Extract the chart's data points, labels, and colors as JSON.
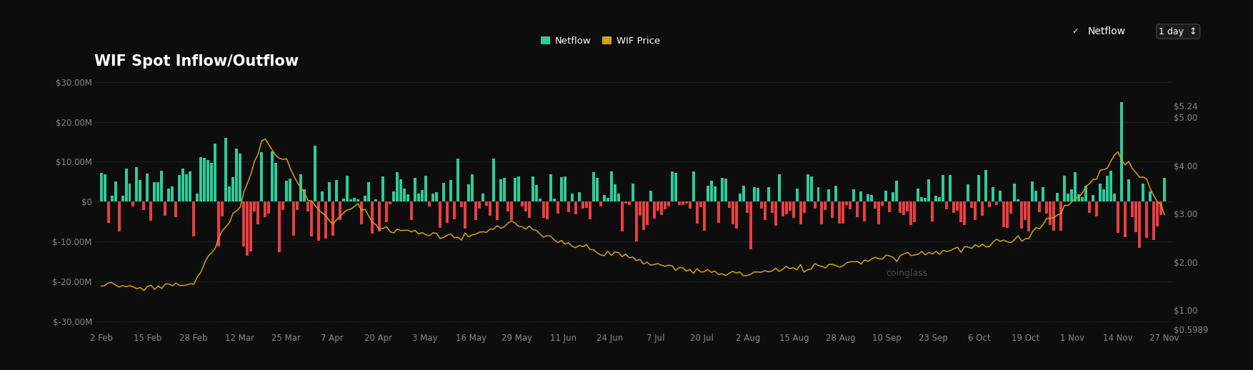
{
  "title": "WIF Spot Inflow/Outflow",
  "bg_color": "#0d0d0d",
  "bar_color_pos": "#2ecc9a",
  "bar_color_neg": "#e84040",
  "price_line_color": "#d4a017",
  "title_color": "#ffffff",
  "axis_label_color": "#888888",
  "grid_color": "#2a2a2a",
  "legend_labels": [
    "Netflow",
    "WIF Price"
  ],
  "legend_colors": [
    "#2ecc9a",
    "#d4a017"
  ],
  "ylim_left": [
    -32000000,
    32000000
  ],
  "ylim_right": [
    0.5989,
    5.9
  ],
  "yticks_left": [
    -30000000,
    -20000000,
    -10000000,
    0,
    10000000,
    20000000,
    30000000
  ],
  "ytick_labels_left": [
    "$-30.00M",
    "$-20.00M",
    "$-10.00M",
    "$0",
    "$10.00M",
    "$20.00M",
    "$30.00M"
  ],
  "ytick_labels_right": [
    "$0.5989",
    "$1.00",
    "$2.00",
    "$3.00",
    "$4.00",
    "$5.00",
    "$5.24"
  ],
  "yticks_right": [
    0.5989,
    1.0,
    2.0,
    3.0,
    4.0,
    5.0,
    5.24
  ],
  "xtick_labels": [
    "2 Feb",
    "15 Feb",
    "28 Feb",
    "12 Mar",
    "25 Mar",
    "7 Apr",
    "20 Apr",
    "3 May",
    "16 May",
    "29 May",
    "11 Jun",
    "24 Jun",
    "7 Jul",
    "20 Jul",
    "2 Aug",
    "15 Aug",
    "28 Aug",
    "10 Sep",
    "23 Sep",
    "6 Oct",
    "19 Oct",
    "1 Nov",
    "14 Nov",
    "27 Nov"
  ],
  "n_bars": 299
}
